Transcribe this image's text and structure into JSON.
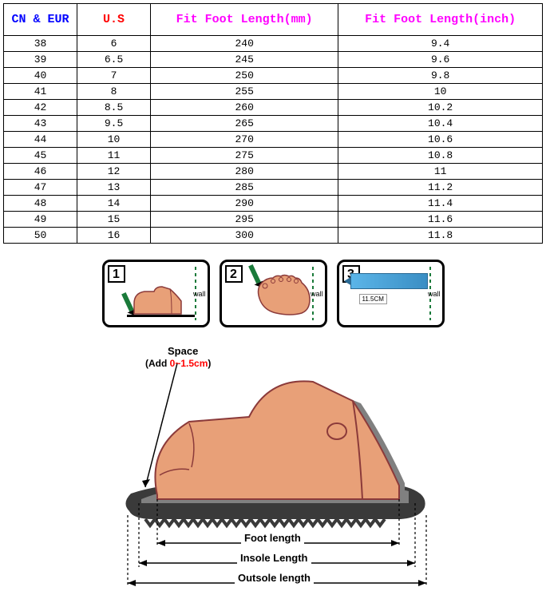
{
  "table": {
    "headers": {
      "cn": "CN & EUR",
      "us": "U.S",
      "mm": "Fit Foot Length(mm)",
      "inch": "Fit Foot Length(inch)"
    },
    "header_colors": {
      "cn": "#0000ff",
      "us": "#ff0000",
      "mm": "#ff00ff",
      "inch": "#ff00ff"
    },
    "rows": [
      [
        "38",
        "6",
        "240",
        "9.4"
      ],
      [
        "39",
        "6.5",
        "245",
        "9.6"
      ],
      [
        "40",
        "7",
        "250",
        "9.8"
      ],
      [
        "41",
        "8",
        "255",
        "10"
      ],
      [
        "42",
        "8.5",
        "260",
        "10.2"
      ],
      [
        "43",
        "9.5",
        "265",
        "10.4"
      ],
      [
        "44",
        "10",
        "270",
        "10.6"
      ],
      [
        "45",
        "11",
        "275",
        "10.8"
      ],
      [
        "46",
        "12",
        "280",
        "11"
      ],
      [
        "47",
        "13",
        "285",
        "11.2"
      ],
      [
        "48",
        "14",
        "290",
        "11.4"
      ],
      [
        "49",
        "15",
        "295",
        "11.6"
      ],
      [
        "50",
        "16",
        "300",
        "11.8"
      ]
    ]
  },
  "steps": {
    "labels": {
      "n1": "1",
      "n2": "2",
      "n3": "3"
    },
    "wall": "wall",
    "ruler_value": "11.5CM"
  },
  "diagram": {
    "space_label": "Space",
    "space_add": "(Add 0~1.5cm)",
    "foot_length": "Foot length",
    "insole_length": "Insole Length",
    "outsole_length": "Outsole length",
    "colors": {
      "skin": "#e8a078",
      "skin_dark": "#c07850",
      "outsole": "#3a3a3a",
      "insole_shadow": "#808080",
      "toe_line": "#8b3a3a",
      "arrow": "#000000"
    }
  }
}
